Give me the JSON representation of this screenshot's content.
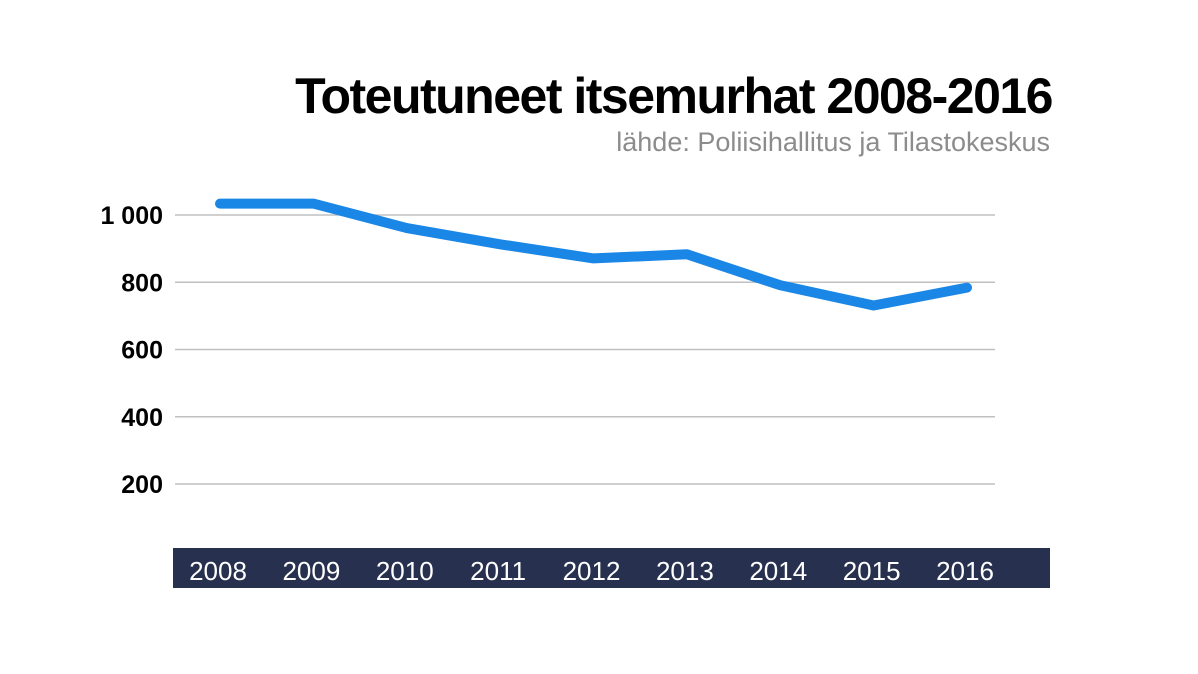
{
  "chart_data": {
    "type": "line",
    "title": "Toteutuneet itsemurhat 2008-2016",
    "subtitle": "lähde: Poliisihallitus ja Tilastokeskus",
    "xlabel": "",
    "ylabel": "",
    "categories": [
      "2008",
      "2009",
      "2010",
      "2011",
      "2012",
      "2013",
      "2014",
      "2015",
      "2016"
    ],
    "values": [
      1034,
      1034,
      961,
      913,
      871,
      883,
      791,
      731,
      784
    ],
    "ylim": [
      100,
      1000
    ],
    "yticks": [
      200,
      400,
      600,
      800,
      1000
    ],
    "ytick_labels": [
      "200",
      "400",
      "600",
      "800",
      "1 000"
    ],
    "grid": true,
    "legend": "none",
    "colors": {
      "line": "#1a86e6",
      "xaxis_band": "#27304f",
      "grid": "#c0c0c0",
      "subtitle": "#8c8c8c"
    }
  }
}
